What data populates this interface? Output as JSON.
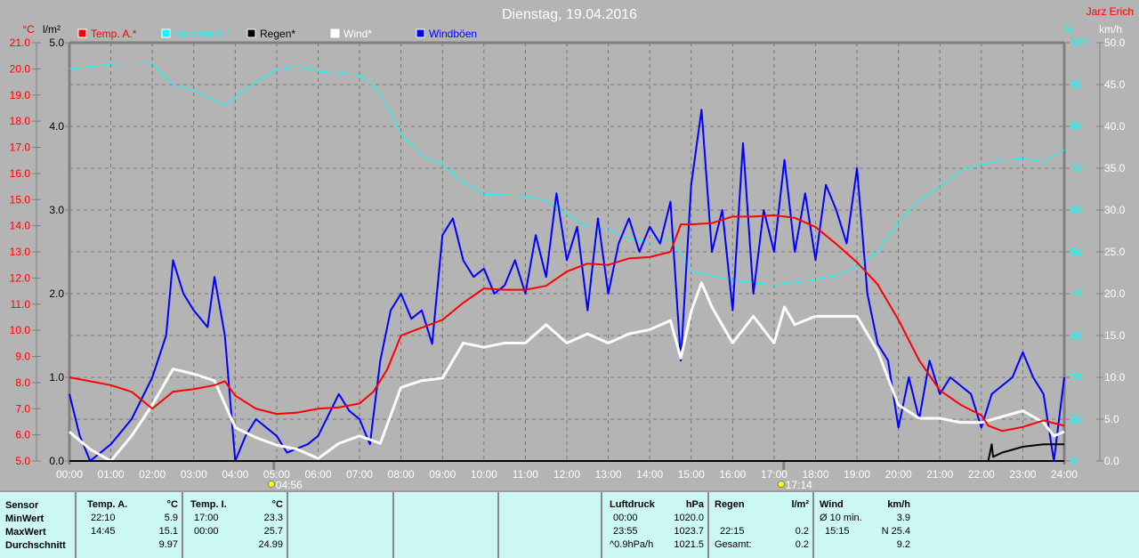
{
  "header": {
    "title": "Dienstag, 19.04.2016",
    "author": "Jarz Erich"
  },
  "axes": {
    "temp_unit": "°C",
    "rain_unit": "l/m²",
    "hum_unit": "%",
    "wind_unit": "km/h",
    "temp_ticks": [
      "21.0",
      "20.0",
      "19.0",
      "18.0",
      "17.0",
      "16.0",
      "15.0",
      "14.0",
      "13.0",
      "12.0",
      "11.0",
      "10.0",
      "9.0",
      "8.0",
      "7.0",
      "6.0",
      "5.0"
    ],
    "rain_ticks": [
      "5.0",
      "4.0",
      "3.0",
      "2.0",
      "1.0",
      "0.0"
    ],
    "hum_ticks": [
      "100",
      "90",
      "80",
      "70",
      "60",
      "50",
      "40",
      "30",
      "20",
      "10",
      "0"
    ],
    "wind_ticks": [
      "50.0",
      "45.0",
      "40.0",
      "35.0",
      "30.0",
      "25.0",
      "20.0",
      "15.0",
      "10.0",
      "5.0",
      "0.0"
    ],
    "time_ticks": [
      "00:00",
      "01:00",
      "02:00",
      "03:00",
      "04:00",
      "05:00",
      "06:00",
      "07:00",
      "08:00",
      "09:00",
      "10:00",
      "11:00",
      "12:00",
      "13:00",
      "14:00",
      "15:00",
      "16:00",
      "17:00",
      "18:00",
      "19:00",
      "20:00",
      "21:00",
      "22:00",
      "23:00",
      "24:00"
    ],
    "sunrise": "04:56",
    "sunset": "17:14"
  },
  "legend": [
    {
      "label": "Temp. A.*",
      "color": "#ff0000"
    },
    {
      "label": "Feuchte A.*",
      "color": "#00ffff"
    },
    {
      "label": "Regen*",
      "color": "#000000"
    },
    {
      "label": "Wind*",
      "color": "#ffffff"
    },
    {
      "label": "Windböen",
      "color": "#0000ff"
    }
  ],
  "chart_data": {
    "type": "line",
    "title": "Dienstag, 19.04.2016",
    "x_range": [
      "00:00",
      "24:00"
    ],
    "temp_ylim": [
      5,
      21
    ],
    "rain_ylim": [
      0,
      5
    ],
    "hum_ylim": [
      0,
      100
    ],
    "wind_ylim": [
      0,
      50
    ],
    "grid": true,
    "legend_position": "top",
    "series": [
      {
        "name": "Temp. A.*",
        "axis": "temp",
        "color": "#ff0000",
        "points": [
          [
            "00:00",
            8.2
          ],
          [
            "01:00",
            7.9
          ],
          [
            "01:30",
            7.65
          ],
          [
            "02:00",
            7.0
          ],
          [
            "02:30",
            7.65
          ],
          [
            "03:00",
            7.75
          ],
          [
            "03:30",
            7.9
          ],
          [
            "03:45",
            8.05
          ],
          [
            "04:00",
            7.5
          ],
          [
            "04:30",
            7.0
          ],
          [
            "05:00",
            6.8
          ],
          [
            "05:30",
            6.85
          ],
          [
            "06:00",
            7.0
          ],
          [
            "06:30",
            7.05
          ],
          [
            "07:00",
            7.2
          ],
          [
            "07:20",
            7.65
          ],
          [
            "07:40",
            8.5
          ],
          [
            "08:00",
            9.8
          ],
          [
            "08:30",
            10.1
          ],
          [
            "09:00",
            10.4
          ],
          [
            "09:30",
            11.05
          ],
          [
            "10:00",
            11.6
          ],
          [
            "10:30",
            11.55
          ],
          [
            "11:00",
            11.55
          ],
          [
            "11:30",
            11.7
          ],
          [
            "12:00",
            12.25
          ],
          [
            "12:30",
            12.55
          ],
          [
            "13:00",
            12.5
          ],
          [
            "13:30",
            12.75
          ],
          [
            "14:00",
            12.8
          ],
          [
            "14:30",
            13.0
          ],
          [
            "14:45",
            14.05
          ],
          [
            "15:00",
            14.05
          ],
          [
            "15:30",
            14.1
          ],
          [
            "16:00",
            14.35
          ],
          [
            "16:30",
            14.35
          ],
          [
            "17:00",
            14.4
          ],
          [
            "17:30",
            14.3
          ],
          [
            "18:00",
            13.95
          ],
          [
            "18:30",
            13.3
          ],
          [
            "19:00",
            12.6
          ],
          [
            "19:30",
            11.75
          ],
          [
            "20:00",
            10.4
          ],
          [
            "20:30",
            8.85
          ],
          [
            "21:00",
            7.7
          ],
          [
            "21:30",
            7.15
          ],
          [
            "22:00",
            6.75
          ],
          [
            "22:10",
            6.35
          ],
          [
            "22:30",
            6.15
          ],
          [
            "23:00",
            6.3
          ],
          [
            "23:30",
            6.55
          ],
          [
            "24:00",
            6.35
          ]
        ]
      },
      {
        "name": "Feuchte A.*",
        "axis": "hum",
        "color": "#00ffff",
        "points": [
          [
            "00:00",
            93.8
          ],
          [
            "01:00",
            94.9
          ],
          [
            "02:00",
            95.1
          ],
          [
            "02:30",
            90
          ],
          [
            "03:00",
            88.5
          ],
          [
            "03:45",
            85.1
          ],
          [
            "04:30",
            90.6
          ],
          [
            "05:00",
            93.6
          ],
          [
            "05:30",
            94.3
          ],
          [
            "06:00",
            93.2
          ],
          [
            "07:00",
            92.3
          ],
          [
            "07:30",
            87.9
          ],
          [
            "08:00",
            78.3
          ],
          [
            "08:30",
            73
          ],
          [
            "09:00",
            70.9
          ],
          [
            "09:30",
            66.6
          ],
          [
            "10:00",
            63.8
          ],
          [
            "11:00",
            63.4
          ],
          [
            "11:30",
            62.3
          ],
          [
            "12:00",
            59.1
          ],
          [
            "12:30",
            56
          ],
          [
            "13:00",
            55.3
          ],
          [
            "13:30",
            53.2
          ],
          [
            "14:00",
            52.3
          ],
          [
            "14:30",
            53.2
          ],
          [
            "14:45",
            49.6
          ],
          [
            "15:00",
            45.3
          ],
          [
            "15:30",
            44.3
          ],
          [
            "16:00",
            43.2
          ],
          [
            "16:30",
            42.6
          ],
          [
            "17:00",
            42.1
          ],
          [
            "18:00",
            43.4
          ],
          [
            "18:30",
            44.3
          ],
          [
            "19:00",
            46.4
          ],
          [
            "19:30",
            50.2
          ],
          [
            "20:00",
            57
          ],
          [
            "20:30",
            62.3
          ],
          [
            "21:00",
            65.5
          ],
          [
            "21:30",
            69.4
          ],
          [
            "22:00",
            70.9
          ],
          [
            "22:30",
            71.9
          ],
          [
            "23:00",
            72.3
          ],
          [
            "23:30",
            71.5
          ],
          [
            "24:00",
            74.5
          ]
        ]
      },
      {
        "name": "Regen*",
        "axis": "rain",
        "color": "#000000",
        "points": [
          [
            "00:00",
            0
          ],
          [
            "22:10",
            0
          ],
          [
            "22:15",
            0.2
          ],
          [
            "22:17",
            0.05
          ],
          [
            "22:30",
            0.1
          ],
          [
            "23:00",
            0.17
          ],
          [
            "23:30",
            0.2
          ],
          [
            "24:00",
            0.2
          ]
        ]
      },
      {
        "name": "Wind*",
        "axis": "wind",
        "color": "#ffffff",
        "points": [
          [
            "00:00",
            3.5
          ],
          [
            "00:30",
            1.4
          ],
          [
            "01:00",
            0
          ],
          [
            "01:30",
            3.0
          ],
          [
            "02:00",
            6.7
          ],
          [
            "02:30",
            11
          ],
          [
            "03:00",
            10.4
          ],
          [
            "03:30",
            9.6
          ],
          [
            "04:00",
            4.0
          ],
          [
            "04:30",
            2.8
          ],
          [
            "05:00",
            1.9
          ],
          [
            "05:30",
            1.4
          ],
          [
            "06:00",
            0.3
          ],
          [
            "06:30",
            2.1
          ],
          [
            "07:00",
            3.0
          ],
          [
            "07:30",
            2.1
          ],
          [
            "08:00",
            8.8
          ],
          [
            "08:30",
            9.6
          ],
          [
            "09:00",
            9.9
          ],
          [
            "09:30",
            14.1
          ],
          [
            "10:00",
            13.6
          ],
          [
            "10:30",
            14.1
          ],
          [
            "11:00",
            14.1
          ],
          [
            "11:30",
            16.3
          ],
          [
            "12:00",
            14.1
          ],
          [
            "12:30",
            15.2
          ],
          [
            "13:00",
            14.1
          ],
          [
            "13:30",
            15.2
          ],
          [
            "14:00",
            15.7
          ],
          [
            "14:30",
            16.8
          ],
          [
            "14:45",
            12.3
          ],
          [
            "15:00",
            17.9
          ],
          [
            "15:15",
            21.3
          ],
          [
            "15:30",
            18.4
          ],
          [
            "16:00",
            14.1
          ],
          [
            "16:30",
            17.3
          ],
          [
            "17:00",
            14.1
          ],
          [
            "17:15",
            18.4
          ],
          [
            "17:30",
            16.3
          ],
          [
            "18:00",
            17.3
          ],
          [
            "18:30",
            17.3
          ],
          [
            "19:00",
            17.3
          ],
          [
            "19:30",
            13.1
          ],
          [
            "20:00",
            6.7
          ],
          [
            "20:30",
            5.1
          ],
          [
            "21:00",
            5.1
          ],
          [
            "21:30",
            4.6
          ],
          [
            "22:00",
            4.6
          ],
          [
            "22:30",
            5.3
          ],
          [
            "23:00",
            6.0
          ],
          [
            "23:30",
            4.6
          ],
          [
            "23:45",
            3.0
          ],
          [
            "24:00",
            3.5
          ]
        ]
      },
      {
        "name": "Windböen",
        "axis": "wind",
        "color": "#0000ff",
        "points": [
          [
            "00:00",
            8
          ],
          [
            "00:15",
            3
          ],
          [
            "00:30",
            0
          ],
          [
            "01:00",
            2
          ],
          [
            "01:30",
            5
          ],
          [
            "02:00",
            10
          ],
          [
            "02:20",
            15
          ],
          [
            "02:30",
            24
          ],
          [
            "02:45",
            20
          ],
          [
            "03:00",
            18
          ],
          [
            "03:20",
            16
          ],
          [
            "03:30",
            22
          ],
          [
            "03:45",
            15
          ],
          [
            "04:00",
            0
          ],
          [
            "04:15",
            3
          ],
          [
            "04:30",
            5
          ],
          [
            "05:00",
            3
          ],
          [
            "05:15",
            1
          ],
          [
            "05:45",
            2
          ],
          [
            "06:00",
            3
          ],
          [
            "06:30",
            8
          ],
          [
            "06:45",
            6
          ],
          [
            "07:00",
            5
          ],
          [
            "07:15",
            2
          ],
          [
            "07:30",
            12
          ],
          [
            "07:45",
            18
          ],
          [
            "08:00",
            20
          ],
          [
            "08:15",
            17
          ],
          [
            "08:30",
            18
          ],
          [
            "08:45",
            14
          ],
          [
            "09:00",
            27
          ],
          [
            "09:15",
            29
          ],
          [
            "09:30",
            24
          ],
          [
            "09:45",
            22
          ],
          [
            "10:00",
            23
          ],
          [
            "10:15",
            20
          ],
          [
            "10:30",
            21
          ],
          [
            "10:45",
            24
          ],
          [
            "11:00",
            20
          ],
          [
            "11:15",
            27
          ],
          [
            "11:30",
            22
          ],
          [
            "11:45",
            32
          ],
          [
            "12:00",
            24
          ],
          [
            "12:15",
            28
          ],
          [
            "12:30",
            18
          ],
          [
            "12:45",
            29
          ],
          [
            "13:00",
            20
          ],
          [
            "13:15",
            26
          ],
          [
            "13:30",
            29
          ],
          [
            "13:45",
            25
          ],
          [
            "14:00",
            28
          ],
          [
            "14:15",
            26
          ],
          [
            "14:30",
            31
          ],
          [
            "14:45",
            12
          ],
          [
            "15:00",
            33
          ],
          [
            "15:15",
            42
          ],
          [
            "15:30",
            25
          ],
          [
            "15:45",
            30
          ],
          [
            "16:00",
            18
          ],
          [
            "16:15",
            38
          ],
          [
            "16:30",
            20
          ],
          [
            "16:45",
            30
          ],
          [
            "17:00",
            25
          ],
          [
            "17:15",
            36
          ],
          [
            "17:30",
            25
          ],
          [
            "17:45",
            32
          ],
          [
            "18:00",
            24
          ],
          [
            "18:15",
            33
          ],
          [
            "18:30",
            30
          ],
          [
            "18:45",
            26
          ],
          [
            "19:00",
            35
          ],
          [
            "19:15",
            20
          ],
          [
            "19:30",
            14
          ],
          [
            "19:45",
            12
          ],
          [
            "20:00",
            4
          ],
          [
            "20:15",
            10
          ],
          [
            "20:30",
            5
          ],
          [
            "20:45",
            12
          ],
          [
            "21:00",
            8
          ],
          [
            "21:15",
            10
          ],
          [
            "21:30",
            9
          ],
          [
            "21:45",
            8
          ],
          [
            "22:00",
            4
          ],
          [
            "22:15",
            8
          ],
          [
            "22:30",
            9
          ],
          [
            "22:45",
            10
          ],
          [
            "23:00",
            13
          ],
          [
            "23:15",
            10
          ],
          [
            "23:30",
            8
          ],
          [
            "23:45",
            0
          ],
          [
            "24:00",
            10
          ]
        ]
      }
    ]
  },
  "table": {
    "rows": [
      "Sensor",
      "MinWert",
      "MaxWert",
      "Durchschnitt"
    ],
    "temp_a": {
      "title": "Temp. A.",
      "unit": "°C",
      "min_time": "22:10",
      "min": "5.9",
      "max_time": "14:45",
      "max": "15.1",
      "avg": "9.97"
    },
    "temp_i": {
      "title": "Temp. I.",
      "unit": "°C",
      "min_time": "17:00",
      "min": "23.3",
      "max_time": "00:00",
      "max": "25.7",
      "avg": "24.99"
    },
    "pressure": {
      "title": "Luftdruck",
      "unit": "hPa",
      "min_time": "00:00",
      "min": "1020.0",
      "max_time": "23:55",
      "max": "1023.7",
      "trend": "^0.9hPa/h",
      "avg": "1021.5"
    },
    "rain": {
      "title": "Regen",
      "unit": "l/m²",
      "max_time": "22:15",
      "max": "0.2",
      "total_label": "Gesamt:",
      "total": "0.2"
    },
    "wind": {
      "title": "Wind",
      "unit": "km/h",
      "avg10_label": "Ø 10 min.",
      "avg10": "3.9",
      "max_time": "15:15",
      "max": "N 25.4",
      "avg": "9.2"
    }
  }
}
